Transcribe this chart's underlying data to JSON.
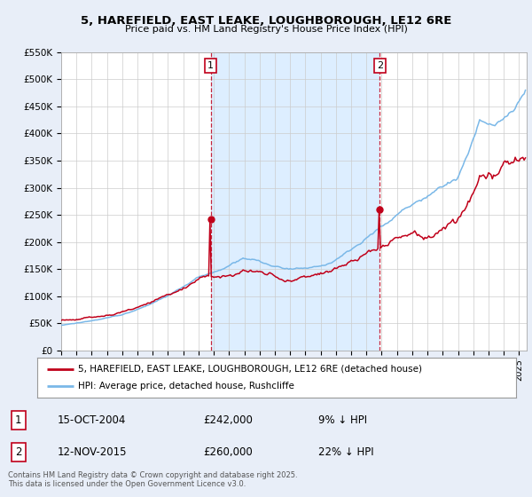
{
  "title_line1": "5, HAREFIELD, EAST LEAKE, LOUGHBOROUGH, LE12 6RE",
  "title_line2": "Price paid vs. HM Land Registry's House Price Index (HPI)",
  "ylim": [
    0,
    550000
  ],
  "yticks": [
    0,
    50000,
    100000,
    150000,
    200000,
    250000,
    300000,
    350000,
    400000,
    450000,
    500000,
    550000
  ],
  "ytick_labels": [
    "£0",
    "£50K",
    "£100K",
    "£150K",
    "£200K",
    "£250K",
    "£300K",
    "£350K",
    "£400K",
    "£450K",
    "£500K",
    "£550K"
  ],
  "hpi_color": "#7ab8e8",
  "price_color": "#c0001a",
  "shade_color": "#ddeeff",
  "marker1_year": 2004.79,
  "marker1_price": 242000,
  "marker1_label": "1",
  "marker1_date_text": "15-OCT-2004",
  "marker1_price_text": "£242,000",
  "marker1_pct_text": "9% ↓ HPI",
  "marker2_year": 2015.87,
  "marker2_price": 260000,
  "marker2_label": "2",
  "marker2_date_text": "12-NOV-2015",
  "marker2_price_text": "£260,000",
  "marker2_pct_text": "22% ↓ HPI",
  "legend_label_price": "5, HAREFIELD, EAST LEAKE, LOUGHBOROUGH, LE12 6RE (detached house)",
  "legend_label_hpi": "HPI: Average price, detached house, Rushcliffe",
  "footer_text": "Contains HM Land Registry data © Crown copyright and database right 2025.\nThis data is licensed under the Open Government Licence v3.0.",
  "background_color": "#e8eef8",
  "plot_bg_color": "#ffffff",
  "xlim_start": 1995.0,
  "xlim_end": 2025.5
}
